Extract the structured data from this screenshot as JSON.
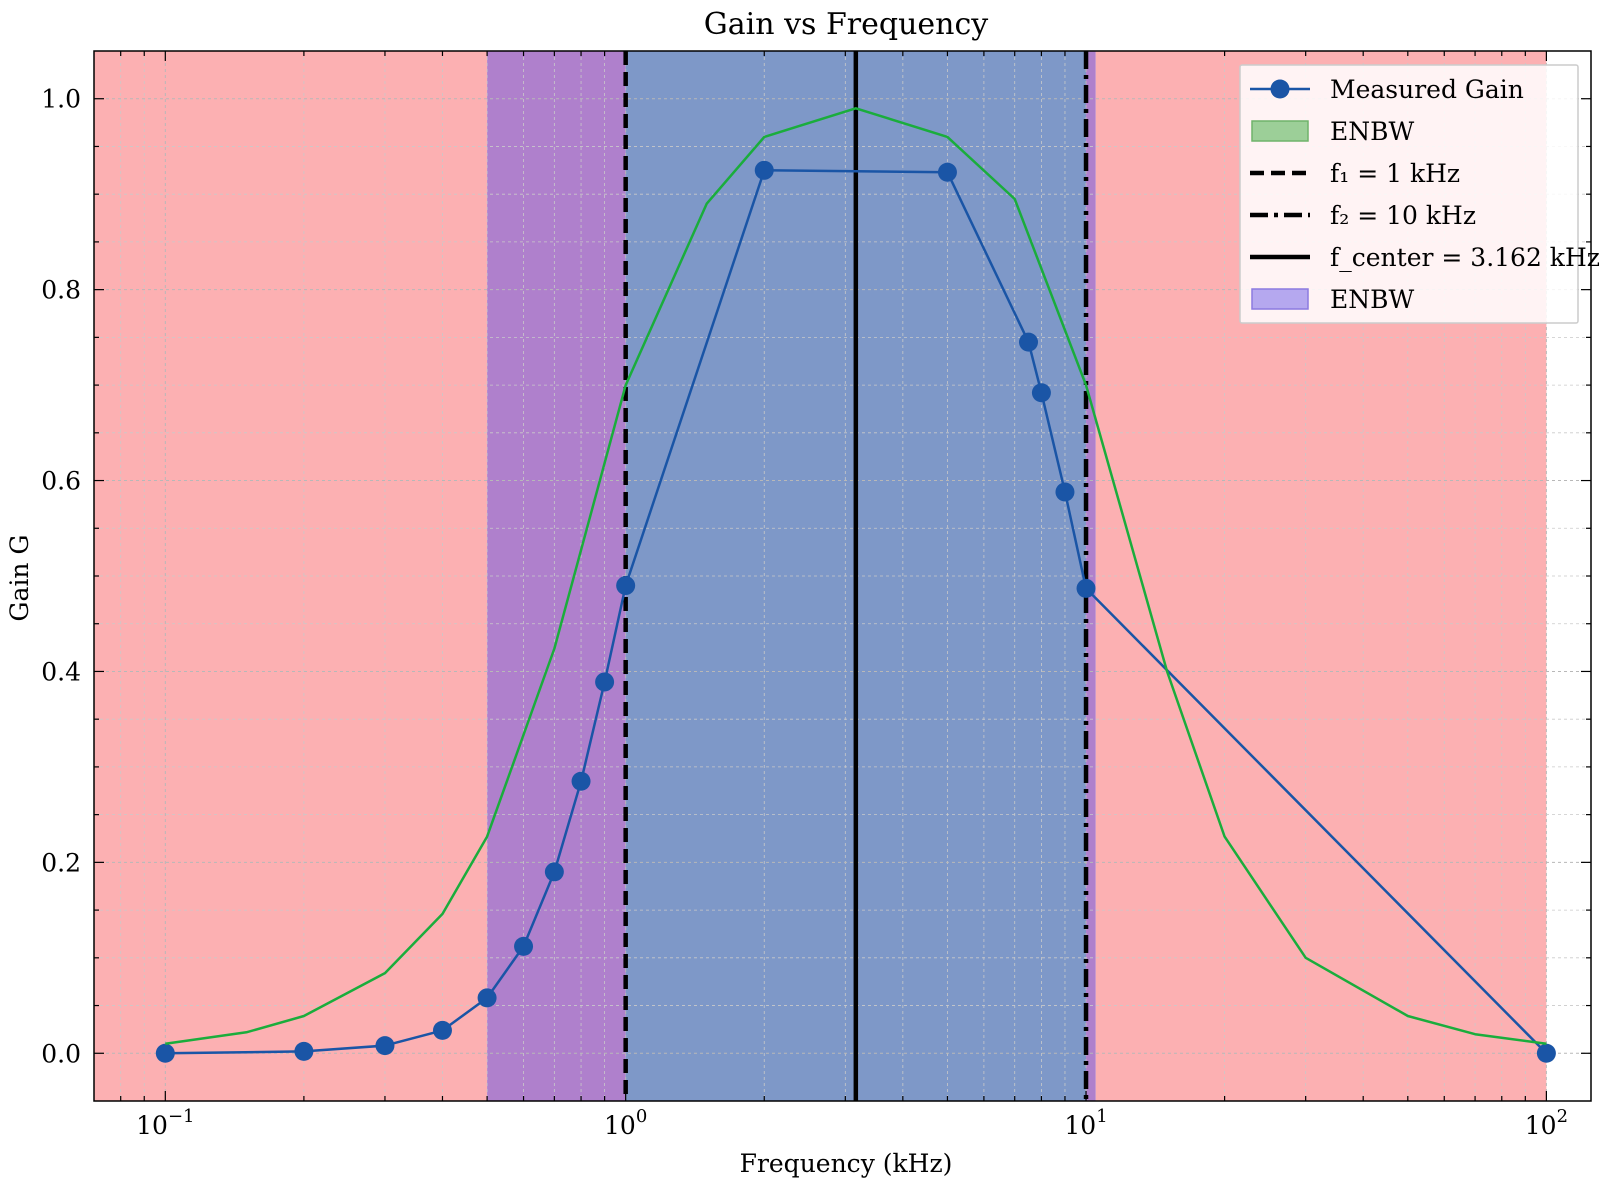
{
  "chart_data": {
    "type": "line",
    "title": "Gain vs Frequency",
    "xlabel": "Frequency (kHz)",
    "ylabel": "Gain G",
    "xscale": "log",
    "xlim": [
      0.07,
      125
    ],
    "ylim": [
      -0.05,
      1.05
    ],
    "x_ticks": [
      {
        "value": 0.1,
        "base": "10",
        "exp": "−1"
      },
      {
        "value": 1,
        "base": "10",
        "exp": "0"
      },
      {
        "value": 10,
        "base": "10",
        "exp": "1"
      },
      {
        "value": 100,
        "base": "10",
        "exp": "2"
      }
    ],
    "y_ticks": [
      {
        "value": 0.0,
        "label": "0.0"
      },
      {
        "value": 0.2,
        "label": "0.2"
      },
      {
        "value": 0.4,
        "label": "0.4"
      },
      {
        "value": 0.6,
        "label": "0.6"
      },
      {
        "value": 0.8,
        "label": "0.8"
      },
      {
        "value": 1.0,
        "label": "1.0"
      }
    ],
    "grid": true,
    "legend_position": "top-right",
    "spans": [
      {
        "from": 0.07,
        "to": 0.5,
        "color": "#fcb0b2"
      },
      {
        "from": 0.5,
        "to": 1.0,
        "color": "#af80cc"
      },
      {
        "from": 1.0,
        "to": 10.0,
        "color": "#7e98c8"
      },
      {
        "from": 10.0,
        "to": 10.5,
        "color": "#af80cc"
      },
      {
        "from": 10.5,
        "to": 100,
        "color": "#fcb0b2"
      }
    ],
    "vlines": [
      {
        "x": 1,
        "style": "dashed",
        "label": "f₁ = 1 kHz"
      },
      {
        "x": 10,
        "style": "dashdot",
        "label": "f₂ = 10 kHz"
      },
      {
        "x": 3.162,
        "style": "solid",
        "label": "f_center = 3.162 kHz"
      }
    ],
    "series": [
      {
        "name": "Measured Gain",
        "color": "#1a55a6",
        "marker": "circle",
        "x": [
          0.1,
          0.2,
          0.3,
          0.4,
          0.5,
          0.6,
          0.7,
          0.8,
          0.9,
          1.0,
          2.0,
          5.0,
          7.5,
          8.0,
          9.0,
          10.0,
          100.0
        ],
        "y": [
          0.0,
          0.002,
          0.008,
          0.024,
          0.058,
          0.112,
          0.19,
          0.285,
          0.389,
          0.49,
          0.925,
          0.923,
          0.745,
          0.692,
          0.588,
          0.487,
          0.0
        ]
      },
      {
        "name": "ENBW",
        "color": "#1aad3c",
        "marker": "none",
        "x": [
          0.1,
          0.15,
          0.2,
          0.3,
          0.4,
          0.5,
          0.7,
          1.0,
          1.5,
          2.0,
          3.162,
          5.0,
          7.0,
          10.0,
          15.0,
          20.0,
          30.0,
          50.0,
          70.0,
          100.0
        ],
        "y": [
          0.01,
          0.022,
          0.039,
          0.084,
          0.146,
          0.227,
          0.424,
          0.7,
          0.89,
          0.96,
          0.99,
          0.96,
          0.895,
          0.7,
          0.4,
          0.227,
          0.1,
          0.039,
          0.02,
          0.01
        ]
      }
    ],
    "legend": [
      {
        "label": "Measured Gain",
        "kind": "line-marker",
        "color": "#1a55a6"
      },
      {
        "label": "ENBW",
        "kind": "patch",
        "color": "#9ccf98",
        "edge": "#6fb36a"
      },
      {
        "label": "f₁ = 1 kHz",
        "kind": "dashed",
        "color": "#000000"
      },
      {
        "label": "f₂ = 10 kHz",
        "kind": "dashdot",
        "color": "#000000"
      },
      {
        "label": "f_center = 3.162 kHz",
        "kind": "solid",
        "color": "#000000"
      },
      {
        "label": "ENBW",
        "kind": "patch",
        "color": "#b5a8ef",
        "edge": "#8c7be0"
      }
    ]
  }
}
